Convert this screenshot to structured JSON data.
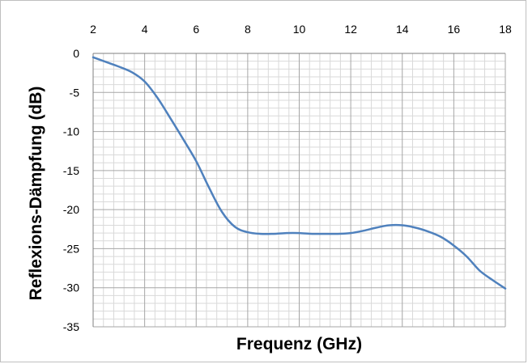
{
  "chart_data": {
    "type": "line",
    "title": "",
    "xlabel": "Frequenz (GHz)",
    "ylabel": "Reflexions-Dämpfung (dB)",
    "xlim": [
      2,
      18
    ],
    "ylim": [
      -35,
      0
    ],
    "x_ticks": [
      "2",
      "4",
      "6",
      "8",
      "10",
      "12",
      "14",
      "16",
      "18"
    ],
    "y_ticks": [
      "0",
      "-5",
      "-10",
      "-15",
      "-20",
      "-25",
      "-30",
      "-35"
    ],
    "x_axis_position": "top",
    "grid": {
      "major": true,
      "minor": true
    },
    "legend": "none",
    "series": [
      {
        "color": "#4f81bd",
        "x": [
          2,
          2.5,
          3,
          3.5,
          4,
          4.5,
          5,
          5.5,
          6,
          6.5,
          7,
          7.5,
          8,
          8.5,
          9,
          9.5,
          10,
          10.5,
          11,
          11.5,
          12,
          12.5,
          13,
          13.5,
          14,
          14.5,
          15,
          15.5,
          16,
          16.5,
          17,
          17.5,
          18
        ],
        "y": [
          -0.5,
          -1.1,
          -1.7,
          -2.4,
          -3.6,
          -5.7,
          -8.3,
          -11.0,
          -13.8,
          -17.2,
          -20.3,
          -22.2,
          -22.9,
          -23.1,
          -23.1,
          -23.0,
          -23.0,
          -23.1,
          -23.1,
          -23.1,
          -23.0,
          -22.7,
          -22.3,
          -22.0,
          -22.0,
          -22.3,
          -22.8,
          -23.5,
          -24.6,
          -26.0,
          -27.8,
          -29.0,
          -30.1
        ]
      }
    ]
  }
}
